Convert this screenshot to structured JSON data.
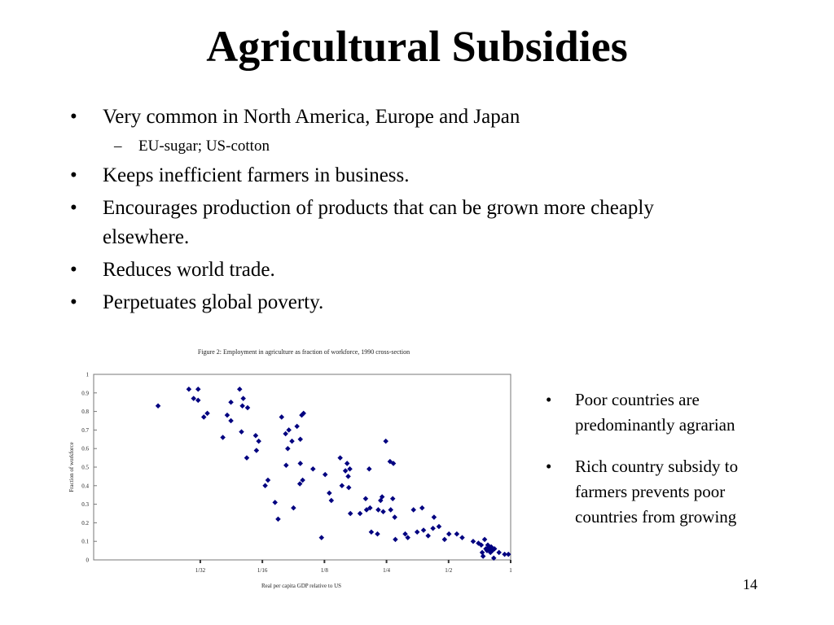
{
  "slide": {
    "title": "Agricultural Subsidies",
    "bullets": [
      {
        "level": 1,
        "text": "Very common in North America, Europe and Japan"
      },
      {
        "level": 2,
        "text": "EU-sugar; US-cotton"
      },
      {
        "level": 1,
        "text": "Keeps inefficient farmers in business."
      },
      {
        "level": 1,
        "text": "Encourages production of products that can be grown more cheaply elsewhere."
      },
      {
        "level": 1,
        "text": "Reduces world trade."
      },
      {
        "level": 1,
        "text": "Perpetuates global poverty."
      }
    ],
    "side_bullets": [
      "Poor countries are predominantly agrarian",
      "Rich country subsidy to farmers prevents poor countries from growing"
    ],
    "page_number": "14",
    "bullet_glyph": "•",
    "dash_glyph": "–"
  },
  "chart_data": {
    "type": "scatter",
    "title": "Figure 2: Employment in agriculture as fraction of workforce, 1990 cross-section",
    "xlabel": "Real per capita GDP relative to US",
    "ylabel": "Fraction of workforce",
    "x_scale": "log2",
    "xlim": [
      0.0095,
      1.0
    ],
    "ylim": [
      0,
      1
    ],
    "x_ticks": [
      0.03125,
      0.0625,
      0.125,
      0.25,
      0.5,
      1
    ],
    "x_tick_labels": [
      "1/32",
      "1/16",
      "1/8",
      "1/4",
      "1/2",
      "1"
    ],
    "y_ticks": [
      0,
      0.1,
      0.2,
      0.3,
      0.4,
      0.5,
      0.6,
      0.7,
      0.8,
      0.9,
      1
    ],
    "y_tick_labels": [
      "0",
      "0.1",
      "0.2",
      "0.3",
      "0.4",
      "0.5",
      "0.6",
      "0.7",
      "0.8",
      "0.9",
      "1"
    ],
    "marker_color": "#000080",
    "points": [
      [
        0.0195,
        0.83
      ],
      [
        0.0275,
        0.92
      ],
      [
        0.0305,
        0.92
      ],
      [
        0.029,
        0.87
      ],
      [
        0.0305,
        0.86
      ],
      [
        0.0325,
        0.77
      ],
      [
        0.0338,
        0.79
      ],
      [
        0.0402,
        0.66
      ],
      [
        0.0422,
        0.78
      ],
      [
        0.044,
        0.75
      ],
      [
        0.044,
        0.85
      ],
      [
        0.0485,
        0.92
      ],
      [
        0.0505,
        0.87
      ],
      [
        0.05,
        0.83
      ],
      [
        0.053,
        0.82
      ],
      [
        0.0495,
        0.69
      ],
      [
        0.0525,
        0.55
      ],
      [
        0.058,
        0.67
      ],
      [
        0.0585,
        0.59
      ],
      [
        0.06,
        0.64
      ],
      [
        0.0645,
        0.4
      ],
      [
        0.0665,
        0.43
      ],
      [
        0.072,
        0.31
      ],
      [
        0.0745,
        0.22
      ],
      [
        0.0775,
        0.77
      ],
      [
        0.081,
        0.68
      ],
      [
        0.083,
        0.6
      ],
      [
        0.084,
        0.7
      ],
      [
        0.087,
        0.64
      ],
      [
        0.0885,
        0.28
      ],
      [
        0.092,
        0.72
      ],
      [
        0.0955,
        0.65
      ],
      [
        0.097,
        0.78
      ],
      [
        0.099,
        0.79
      ],
      [
        0.095,
        0.41
      ],
      [
        0.0955,
        0.52
      ],
      [
        0.098,
        0.43
      ],
      [
        0.11,
        0.49
      ],
      [
        0.0815,
        0.51
      ],
      [
        0.121,
        0.12
      ],
      [
        0.126,
        0.46
      ],
      [
        0.132,
        0.36
      ],
      [
        0.135,
        0.32
      ],
      [
        0.149,
        0.55
      ],
      [
        0.152,
        0.4
      ],
      [
        0.158,
        0.48
      ],
      [
        0.161,
        0.52
      ],
      [
        0.163,
        0.45
      ],
      [
        0.166,
        0.49
      ],
      [
        0.164,
        0.39
      ],
      [
        0.167,
        0.25
      ],
      [
        0.186,
        0.25
      ],
      [
        0.198,
        0.33
      ],
      [
        0.2,
        0.27
      ],
      [
        0.206,
        0.49
      ],
      [
        0.208,
        0.28
      ],
      [
        0.211,
        0.15
      ],
      [
        0.226,
        0.14
      ],
      [
        0.228,
        0.27
      ],
      [
        0.234,
        0.32
      ],
      [
        0.238,
        0.34
      ],
      [
        0.241,
        0.26
      ],
      [
        0.248,
        0.64
      ],
      [
        0.26,
        0.53
      ],
      [
        0.262,
        0.27
      ],
      [
        0.268,
        0.33
      ],
      [
        0.27,
        0.52
      ],
      [
        0.274,
        0.23
      ],
      [
        0.276,
        0.11
      ],
      [
        0.308,
        0.14
      ],
      [
        0.317,
        0.12
      ],
      [
        0.338,
        0.27
      ],
      [
        0.352,
        0.15
      ],
      [
        0.372,
        0.28
      ],
      [
        0.378,
        0.16
      ],
      [
        0.398,
        0.13
      ],
      [
        0.42,
        0.17
      ],
      [
        0.425,
        0.23
      ],
      [
        0.449,
        0.18
      ],
      [
        0.478,
        0.11
      ],
      [
        0.502,
        0.14
      ],
      [
        0.548,
        0.14
      ],
      [
        0.582,
        0.12
      ],
      [
        0.658,
        0.1
      ],
      [
        0.698,
        0.09
      ],
      [
        0.72,
        0.08
      ],
      [
        0.728,
        0.04
      ],
      [
        0.735,
        0.02
      ],
      [
        0.748,
        0.11
      ],
      [
        0.758,
        0.06
      ],
      [
        0.768,
        0.05
      ],
      [
        0.775,
        0.08
      ],
      [
        0.785,
        0.07
      ],
      [
        0.79,
        0.06
      ],
      [
        0.798,
        0.04
      ],
      [
        0.805,
        0.07
      ],
      [
        0.815,
        0.05
      ],
      [
        0.828,
        0.01
      ],
      [
        0.835,
        0.06
      ],
      [
        0.878,
        0.04
      ],
      [
        0.935,
        0.03
      ],
      [
        0.975,
        0.03
      ]
    ]
  }
}
